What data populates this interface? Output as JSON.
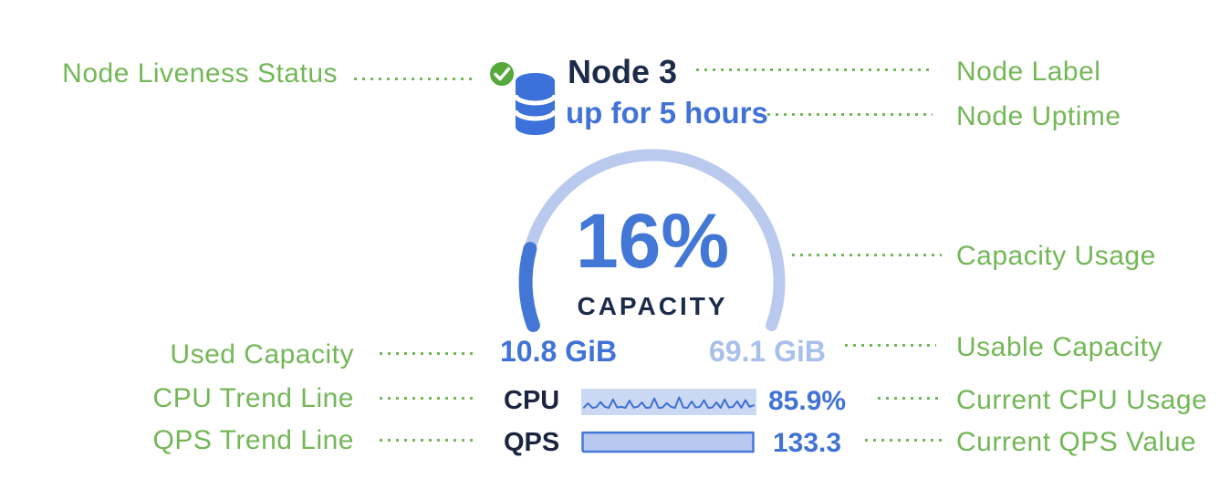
{
  "card": {
    "node_label": "Node 3",
    "node_uptime": "up for 5 hours",
    "capacity_value": "16%",
    "capacity_caption": "CAPACITY",
    "used_capacity": "10.8 GiB",
    "usable_capacity": "69.1 GiB",
    "cpu_label": "CPU",
    "cpu_value": "85.9%",
    "qps_label": "QPS",
    "qps_value": "133.3",
    "icons": {
      "liveness": "green-check-circle-icon",
      "node": "database-cylinder-icon"
    }
  },
  "annotations": {
    "node_liveness": "Node Liveness Status",
    "node_label": "Node Label",
    "node_uptime": "Node Uptime",
    "capacity_usage": "Capacity Usage",
    "used_capacity": "Used Capacity",
    "usable_capacity": "Usable Capacity",
    "cpu_trend": "CPU Trend Line",
    "current_cpu": "Current CPU Usage",
    "qps_trend": "QPS Trend Line",
    "current_qps": "Current QPS Value"
  },
  "colors": {
    "annotation_green": "#74b757",
    "badge_green": "#56a83b",
    "primary_blue": "#4173d6",
    "dark_navy": "#1c2b4a",
    "gauge_track_blue": "#bac9ee",
    "usable_text_blue": "#a8c0ea",
    "spark_bg_blue": "#cbd8f3",
    "qps_fill_blue": "#b7c9f0"
  },
  "chart_data": [
    {
      "type": "gauge",
      "title": "CAPACITY",
      "value_label": "16%",
      "percent": 16,
      "arc_start_deg": 160,
      "arc_sweep_deg": 220,
      "used": "10.8 GiB",
      "usable": "69.1 GiB"
    },
    {
      "type": "line",
      "name": "CPU trend sparkline",
      "current_value": "85.9%",
      "values_norm": [
        0.22,
        0.45,
        0.2,
        0.24,
        0.52,
        0.26,
        0.2,
        0.66,
        0.22,
        0.26,
        0.2,
        0.6,
        0.22,
        0.26,
        0.5,
        0.2,
        0.22,
        0.72,
        0.2,
        0.22,
        0.46,
        0.26,
        0.2,
        0.78,
        0.22,
        0.2,
        0.55,
        0.22,
        0.26,
        0.62,
        0.2,
        0.22,
        0.5,
        0.2,
        0.66,
        0.22,
        0.26,
        0.56,
        0.2,
        0.62,
        0.26,
        0.34
      ]
    },
    {
      "type": "area",
      "name": "QPS trend",
      "current_value": "133.3",
      "values_norm": [
        0.95,
        0.95,
        0.95,
        0.95,
        0.95,
        0.95,
        0.95,
        0.95,
        0.95,
        0.95
      ]
    }
  ]
}
